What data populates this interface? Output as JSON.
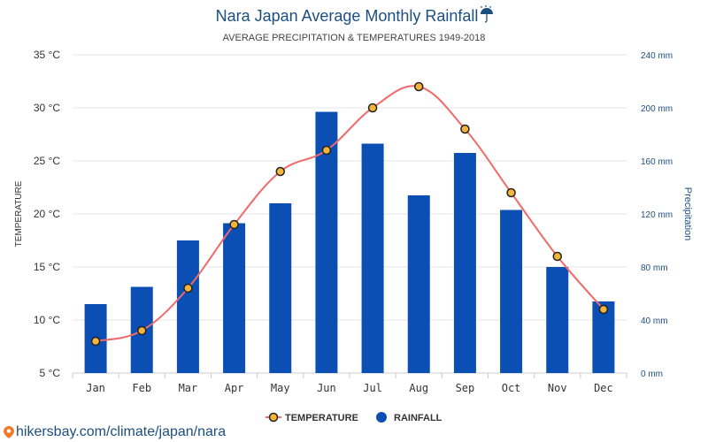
{
  "header": {
    "title": "Nara Japan Average Monthly Rainfall",
    "title_icon": "umbrella-icon",
    "subtitle": "AVERAGE PRECIPITATION & TEMPERATURES 1949-2018"
  },
  "chart_data": {
    "type": "bar",
    "categories": [
      "Jan",
      "Feb",
      "Mar",
      "Apr",
      "May",
      "Jun",
      "Jul",
      "Aug",
      "Sep",
      "Oct",
      "Nov",
      "Dec"
    ],
    "series": [
      {
        "name": "RAINFALL",
        "type": "bar",
        "axis": "right",
        "color": "#0b4eb4",
        "values": [
          52,
          65,
          100,
          113,
          128,
          197,
          173,
          134,
          166,
          123,
          80,
          54
        ]
      },
      {
        "name": "TEMPERATURE",
        "type": "line",
        "axis": "left",
        "color": "#f06a6a",
        "marker_color": "#f5b43c",
        "values": [
          8,
          9,
          13,
          19,
          24,
          26,
          30,
          32,
          28,
          22,
          16,
          11
        ]
      }
    ],
    "y_left": {
      "label": "TEMPERATURE",
      "range": [
        5,
        35
      ],
      "ticks": [
        "35 °C",
        "30 °C",
        "25 °C",
        "20 °C",
        "15 °C",
        "10 °C",
        "5 °C"
      ]
    },
    "y_right": {
      "label": "Precipitation",
      "range": [
        0,
        240
      ],
      "ticks": [
        "240 mm",
        "200 mm",
        "160 mm",
        "120 mm",
        "80 mm",
        "40 mm",
        "0 mm"
      ]
    },
    "grid": true,
    "legend_position": "bottom"
  },
  "legend": {
    "temperature": "TEMPERATURE",
    "rainfall": "RAINFALL"
  },
  "footer": {
    "source": "hikersbay.com/climate/japan/nara",
    "icon": "map-pin-icon"
  },
  "colors": {
    "title": "#1c4e80",
    "bar": "#0b4eb4",
    "line": "#f06a6a",
    "marker": "#f5b43c"
  }
}
